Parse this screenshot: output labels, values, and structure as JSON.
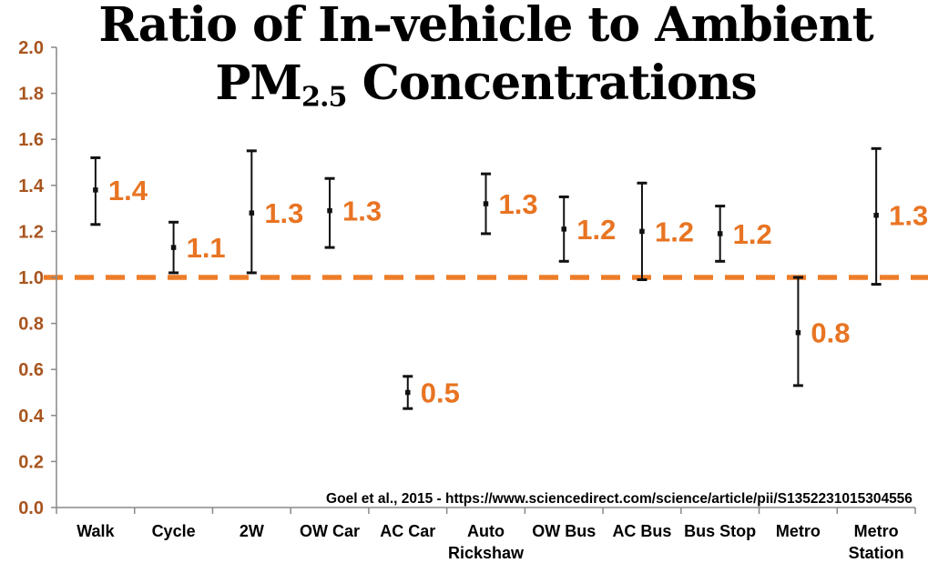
{
  "chart_data": {
    "type": "scatter",
    "subtype": "point-with-error-bars",
    "title_line1": "Ratio of In-vehicle to Ambient",
    "title_pm": "PM",
    "title_sub": "2.5",
    "title_line2_tail": " Concentrations",
    "xlabel": "",
    "ylabel": "",
    "ylim": [
      0.0,
      2.0
    ],
    "ytick_labels": [
      "0.0",
      "0.2",
      "0.4",
      "0.6",
      "0.8",
      "1.0",
      "1.2",
      "1.4",
      "1.6",
      "1.8",
      "2.0"
    ],
    "reference_line_y": 1.0,
    "grid": false,
    "legend": "none",
    "categories": [
      "Walk",
      "Cycle",
      "2W",
      "OW Car",
      "AC Car",
      "Auto Rickshaw",
      "OW Bus",
      "AC Bus",
      "Bus Stop",
      "Metro",
      "Metro Station"
    ],
    "category_label_lines": [
      [
        "Walk"
      ],
      [
        "Cycle"
      ],
      [
        "2W"
      ],
      [
        "OW Car"
      ],
      [
        "AC Car"
      ],
      [
        "Auto",
        "Rickshaw"
      ],
      [
        "OW Bus"
      ],
      [
        "AC Bus"
      ],
      [
        "Bus Stop"
      ],
      [
        "Metro"
      ],
      [
        "Metro",
        "Station"
      ]
    ],
    "points": [
      {
        "category": "Walk",
        "mean": 1.38,
        "lo": 1.23,
        "hi": 1.52,
        "label": "1.4"
      },
      {
        "category": "Cycle",
        "mean": 1.13,
        "lo": 1.02,
        "hi": 1.24,
        "label": "1.1"
      },
      {
        "category": "2W",
        "mean": 1.28,
        "lo": 1.02,
        "hi": 1.55,
        "label": "1.3"
      },
      {
        "category": "OW Car",
        "mean": 1.29,
        "lo": 1.13,
        "hi": 1.43,
        "label": "1.3"
      },
      {
        "category": "AC Car",
        "mean": 0.5,
        "lo": 0.43,
        "hi": 0.57,
        "label": "0.5"
      },
      {
        "category": "Auto Rickshaw",
        "mean": 1.32,
        "lo": 1.19,
        "hi": 1.45,
        "label": "1.3"
      },
      {
        "category": "OW Bus",
        "mean": 1.21,
        "lo": 1.07,
        "hi": 1.35,
        "label": "1.2"
      },
      {
        "category": "AC Bus",
        "mean": 1.2,
        "lo": 0.99,
        "hi": 1.41,
        "label": "1.2"
      },
      {
        "category": "Bus Stop",
        "mean": 1.19,
        "lo": 1.07,
        "hi": 1.31,
        "label": "1.2"
      },
      {
        "category": "Metro",
        "mean": 0.76,
        "lo": 0.53,
        "hi": 1.0,
        "label": "0.8"
      },
      {
        "category": "Metro Station",
        "mean": 1.27,
        "lo": 0.97,
        "hi": 1.56,
        "label": "1.3"
      }
    ],
    "source": "Goel et al., 2015 - https://www.sciencedirect.com/science/article/pii/S1352231015304556"
  },
  "colors": {
    "background": "#FFFFFF",
    "title": "#000000",
    "axis": "#898989",
    "y_tick_label": "#A8551E",
    "data_label": "#E87422",
    "reference_line": "#EE7D28",
    "error_bar": "#111111",
    "category_label": "#000000",
    "source_text": "#000000"
  }
}
